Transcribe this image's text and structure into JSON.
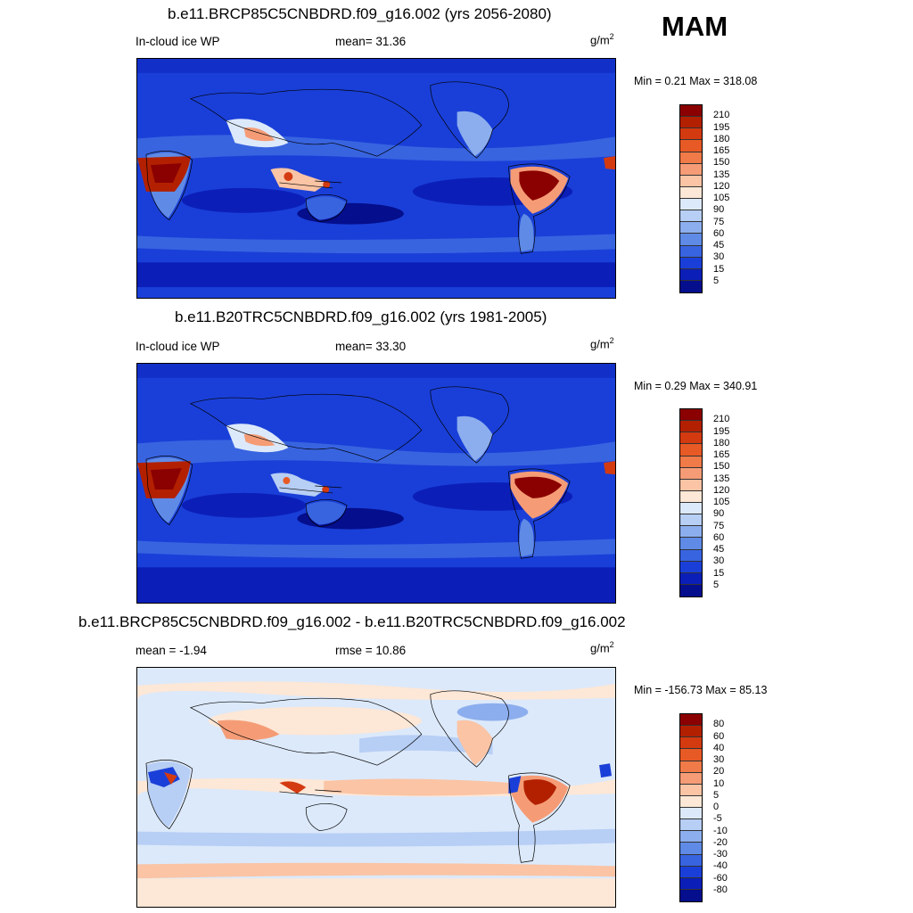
{
  "season": "MAM",
  "panels": [
    {
      "title": "b.e11.BRCP85C5CNBDRD.f09_g16.002 (yrs 2056-2080)",
      "left_label": "In-cloud ice WP",
      "mid_label": "mean=  31.36",
      "units": "g/m",
      "units_sup": "2",
      "minmax": "Min =   0.21 Max = 318.08",
      "palette": "abs"
    },
    {
      "title": "b.e11.B20TRC5CNBDRD.f09_g16.002 (yrs 1981-2005)",
      "left_label": "In-cloud ice WP",
      "mid_label": "mean=  33.30",
      "units": "g/m",
      "units_sup": "2",
      "minmax": "Min =   0.29 Max = 340.91",
      "palette": "abs"
    },
    {
      "title": "b.e11.BRCP85C5CNBDRD.f09_g16.002 - b.e11.B20TRC5CNBDRD.f09_g16.002",
      "left_label": "mean =  -1.94",
      "mid_label": "rmse =  10.86",
      "units": "g/m",
      "units_sup": "2",
      "minmax": "Min = -156.73 Max =  85.13",
      "palette": "diff"
    }
  ],
  "colorbars": {
    "abs": {
      "labels": [
        "210",
        "195",
        "180",
        "165",
        "150",
        "135",
        "120",
        "105",
        "90",
        "75",
        "60",
        "45",
        "30",
        "15",
        "5"
      ],
      "colors": [
        "#8b0000",
        "#b22000",
        "#d43a10",
        "#e85a25",
        "#f07a48",
        "#f59c76",
        "#fac4a5",
        "#fde7d6",
        "#dce9fa",
        "#b7cef5",
        "#8caeee",
        "#5f8be6",
        "#3864e0",
        "#1a3fd8",
        "#0b1fb8",
        "#050e8c"
      ]
    },
    "diff": {
      "labels": [
        "80",
        "60",
        "40",
        "30",
        "20",
        "10",
        "5",
        "0",
        "-5",
        "-10",
        "-20",
        "-30",
        "-40",
        "-60",
        "-80"
      ],
      "colors": [
        "#8b0000",
        "#b22000",
        "#d43a10",
        "#e85a25",
        "#f07a48",
        "#f59c76",
        "#fac4a5",
        "#fde7d6",
        "#dce9fa",
        "#b7cef5",
        "#8caeee",
        "#5f8be6",
        "#3864e0",
        "#1a3fd8",
        "#0b1fb8",
        "#050e8c"
      ]
    }
  }
}
